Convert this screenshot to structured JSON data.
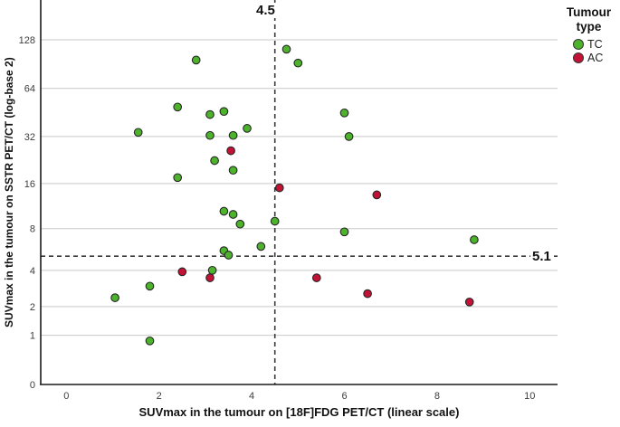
{
  "chart_data": {
    "type": "scatter",
    "xlabel": "SUVmax in the tumour on [18F]FDG PET/CT (linear scale)",
    "ylabel": "SUVmax in the tumour on SSTR PET/CT (log-base 2)",
    "x_ticks": [
      0,
      2,
      4,
      6,
      8,
      10
    ],
    "y_ticks": [
      0,
      1,
      2,
      4,
      8,
      16,
      32,
      64,
      128
    ],
    "xlim": [
      -0.55,
      10.6
    ],
    "y_scale": "log-base-2 (plotted as log2(value+1), 0 at origin)",
    "grid": "horizontal-only",
    "legend_position": "top-right-outside",
    "reference_lines": {
      "x_value": 4.5,
      "x_label": "4.5",
      "y_value": 5.1,
      "y_label": "5.1",
      "style": "dashed",
      "color": "#3a3a3a"
    },
    "legend": {
      "title": "Tumour type",
      "items": [
        {
          "label": "TC",
          "color": "#4db32c"
        },
        {
          "label": "AC",
          "color": "#c31235"
        }
      ]
    },
    "series": [
      {
        "name": "TC",
        "color": "#4db32c",
        "marker": "circle",
        "points": [
          [
            2.8,
            96
          ],
          [
            4.75,
            112
          ],
          [
            5.0,
            92
          ],
          [
            2.4,
            49
          ],
          [
            3.1,
            44
          ],
          [
            3.4,
            46
          ],
          [
            1.55,
            34
          ],
          [
            3.1,
            32.5
          ],
          [
            3.6,
            32.5
          ],
          [
            3.9,
            36
          ],
          [
            6.0,
            45
          ],
          [
            6.1,
            32
          ],
          [
            3.2,
            22.5
          ],
          [
            3.6,
            19.5
          ],
          [
            2.4,
            17.5
          ],
          [
            3.4,
            10.5
          ],
          [
            3.6,
            10
          ],
          [
            3.75,
            8.6
          ],
          [
            4.5,
            9
          ],
          [
            6.0,
            7.6
          ],
          [
            4.2,
            6
          ],
          [
            8.8,
            6.7
          ],
          [
            3.4,
            5.6
          ],
          [
            3.5,
            5.2
          ],
          [
            3.15,
            4.0
          ],
          [
            1.8,
            3.0
          ],
          [
            1.05,
            2.4
          ],
          [
            1.8,
            0.85
          ]
        ]
      },
      {
        "name": "AC",
        "color": "#c31235",
        "marker": "circle",
        "points": [
          [
            3.55,
            26
          ],
          [
            4.6,
            15
          ],
          [
            6.7,
            13.5
          ],
          [
            2.5,
            3.9
          ],
          [
            3.1,
            3.5
          ],
          [
            5.4,
            3.5
          ],
          [
            6.5,
            2.6
          ],
          [
            8.7,
            2.2
          ]
        ]
      }
    ],
    "colors": {
      "grid": "#c9c9c9",
      "axis": "#1a1a1a",
      "tick_text": "#3d3d3d",
      "marker_stroke": "#262626"
    }
  }
}
